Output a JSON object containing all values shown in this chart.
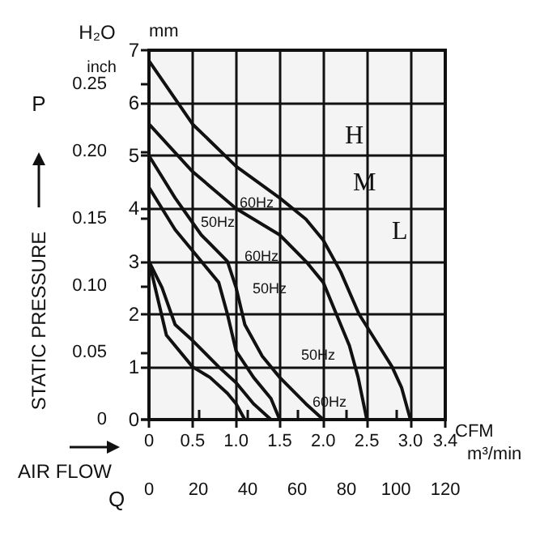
{
  "chart_data": {
    "type": "line",
    "xlabel": "m³/min",
    "x2label": "CFM",
    "ylabel": "mm",
    "y2label": "inch",
    "xlim": [
      0,
      3.4
    ],
    "xticks": [
      0,
      0.5,
      {
        "value": 1,
        "label": "1.0"
      },
      1.5,
      {
        "value": 2,
        "label": "2.0"
      },
      2.5,
      {
        "value": 3,
        "label": "3.0"
      },
      3.4
    ],
    "x2lim": [
      0,
      120
    ],
    "x2ticks": [
      0,
      20,
      40,
      60,
      80,
      100,
      120
    ],
    "ylim": [
      0,
      7
    ],
    "yticks": [
      0,
      1,
      2,
      3,
      4,
      5,
      6,
      7
    ],
    "y2lim": [
      0,
      0.2756
    ],
    "y2ticks": [
      0,
      0.05,
      {
        "value": 0.1,
        "label": "0.10"
      },
      0.15,
      {
        "value": 0.2,
        "label": "0.20"
      },
      0.25
    ],
    "grid": true,
    "line_style": "solid",
    "series": [
      {
        "color": "#111111",
        "x": [
          0,
          0.5,
          1.0,
          1.5,
          1.8,
          2.0,
          2.2,
          2.41,
          2.6,
          2.79,
          2.9,
          3.0
        ],
        "values": [
          6.8,
          5.6,
          4.8,
          4.2,
          3.8,
          3.4,
          2.8,
          2.0,
          1.5,
          1.0,
          0.6,
          0
        ]
      },
      {
        "color": "#111111",
        "x": [
          0,
          0.5,
          1.0,
          1.5,
          1.8,
          2.0,
          2.15,
          2.3,
          2.4,
          2.5
        ],
        "values": [
          5.6,
          4.7,
          4.0,
          3.5,
          3.0,
          2.6,
          2.0,
          1.4,
          0.8,
          0
        ]
      },
      {
        "color": "#111111",
        "x": [
          0,
          0.3,
          0.6,
          0.9,
          1.0,
          1.1,
          1.3,
          1.5,
          1.8,
          2.0
        ],
        "values": [
          5.0,
          4.2,
          3.5,
          3.0,
          2.5,
          1.8,
          1.2,
          0.8,
          0.3,
          0
        ]
      },
      {
        "color": "#111111",
        "x": [
          0,
          0.3,
          0.6,
          0.8,
          0.9,
          1.0,
          1.2,
          1.4,
          1.5
        ],
        "values": [
          4.4,
          3.6,
          3.0,
          2.6,
          2.0,
          1.3,
          0.8,
          0.4,
          0
        ]
      },
      {
        "color": "#111111",
        "x": [
          0,
          0.15,
          0.3,
          0.5,
          0.8,
          1.0,
          1.2,
          1.4
        ],
        "values": [
          3.0,
          2.5,
          1.8,
          1.5,
          1.0,
          0.7,
          0.3,
          0
        ]
      },
      {
        "color": "#111111",
        "x": [
          0,
          0.1,
          0.2,
          0.5,
          0.7,
          0.9,
          1.0,
          1.1
        ],
        "values": [
          3.0,
          2.3,
          1.6,
          1.0,
          0.8,
          0.5,
          0.3,
          0
        ]
      }
    ],
    "annotations": [
      "H₂O",
      "P",
      "STATIC PRESSURE",
      "AIR FLOW",
      "Q",
      "H",
      "M",
      "L",
      "60Hz",
      "50Hz",
      "60Hz",
      "50Hz",
      "50Hz",
      "60Hz"
    ]
  }
}
